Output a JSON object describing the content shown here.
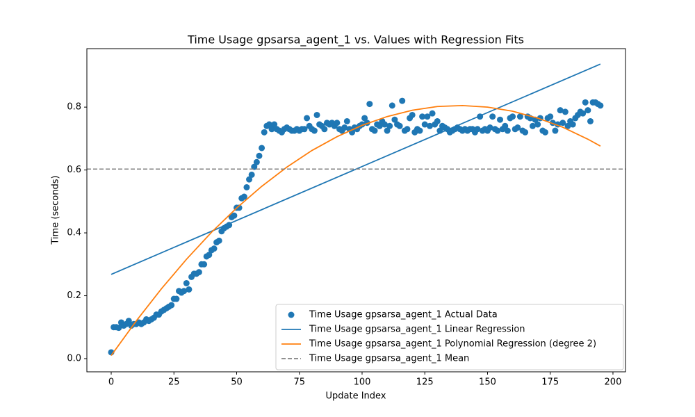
{
  "chart_data": {
    "type": "scatter",
    "title": "Time Usage gpsarsa_agent_1 vs. Values with Regression Fits",
    "xlabel": "Update Index",
    "ylabel": "Time (seconds)",
    "xlim": [
      -9.7,
      205
    ],
    "ylim": [
      -0.042,
      0.986
    ],
    "xticks": [
      0,
      25,
      50,
      75,
      100,
      125,
      150,
      175,
      200
    ],
    "yticks": [
      {
        "value": 0,
        "label": "0.0"
      },
      0.2,
      0.4,
      0.6,
      0.8
    ],
    "legend": "lower right",
    "series": [
      {
        "name": "Time Usage gpsarsa_agent_1 Actual Data",
        "kind": "scatter",
        "color": "#1f77b4",
        "x": [
          0,
          1,
          2,
          3,
          4,
          5,
          6,
          7,
          8,
          9,
          10,
          11,
          12,
          13,
          14,
          15,
          16,
          17,
          18,
          19,
          20,
          21,
          22,
          23,
          24,
          25,
          26,
          27,
          28,
          29,
          30,
          31,
          32,
          33,
          34,
          35,
          36,
          37,
          38,
          39,
          40,
          41,
          42,
          43,
          44,
          45,
          46,
          47,
          48,
          49,
          50,
          51,
          52,
          53,
          54,
          55,
          56,
          57,
          58,
          59,
          60,
          61,
          62,
          63,
          64,
          65,
          66,
          67,
          68,
          69,
          70,
          71,
          72,
          73,
          74,
          75,
          76,
          77,
          78,
          79,
          80,
          81,
          82,
          83,
          84,
          85,
          86,
          87,
          88,
          89,
          90,
          91,
          92,
          93,
          94,
          95,
          96,
          97,
          98,
          99,
          100,
          101,
          102,
          103,
          104,
          105,
          106,
          107,
          108,
          109,
          110,
          111,
          112,
          113,
          114,
          115,
          116,
          117,
          118,
          119,
          120,
          121,
          122,
          123,
          124,
          125,
          126,
          127,
          128,
          129,
          130,
          131,
          132,
          133,
          134,
          135,
          136,
          137,
          138,
          139,
          140,
          141,
          142,
          143,
          144,
          145,
          146,
          147,
          148,
          149,
          150,
          151,
          152,
          153,
          154,
          155,
          156,
          157,
          158,
          159,
          160,
          161,
          162,
          163,
          164,
          165,
          166,
          167,
          168,
          169,
          170,
          171,
          172,
          173,
          174,
          175,
          176,
          177,
          178,
          179,
          180,
          181,
          182,
          183,
          184,
          185,
          186,
          187,
          188,
          189,
          190,
          191,
          192,
          193,
          194,
          195
        ],
        "values": [
          0.02,
          0.1,
          0.1,
          0.098,
          0.115,
          0.105,
          0.11,
          0.12,
          0.105,
          0.11,
          0.11,
          0.115,
          0.11,
          0.115,
          0.125,
          0.12,
          0.125,
          0.13,
          0.14,
          0.14,
          0.15,
          0.155,
          0.16,
          0.165,
          0.17,
          0.19,
          0.19,
          0.215,
          0.21,
          0.215,
          0.24,
          0.22,
          0.26,
          0.27,
          0.27,
          0.275,
          0.3,
          0.3,
          0.325,
          0.33,
          0.345,
          0.35,
          0.37,
          0.375,
          0.405,
          0.415,
          0.42,
          0.425,
          0.45,
          0.455,
          0.48,
          0.48,
          0.51,
          0.515,
          0.545,
          0.57,
          0.585,
          0.61,
          0.625,
          0.645,
          0.67,
          0.72,
          0.74,
          0.745,
          0.73,
          0.745,
          0.73,
          0.725,
          0.72,
          0.73,
          0.735,
          0.73,
          0.725,
          0.725,
          0.73,
          0.725,
          0.73,
          0.73,
          0.765,
          0.74,
          0.73,
          0.725,
          0.775,
          0.745,
          0.74,
          0.73,
          0.75,
          0.745,
          0.75,
          0.74,
          0.75,
          0.73,
          0.725,
          0.735,
          0.755,
          0.73,
          0.72,
          0.735,
          0.73,
          0.74,
          0.745,
          0.765,
          0.75,
          0.81,
          0.73,
          0.725,
          0.745,
          0.74,
          0.755,
          0.745,
          0.725,
          0.74,
          0.805,
          0.76,
          0.745,
          0.74,
          0.82,
          0.725,
          0.73,
          0.765,
          0.775,
          0.72,
          0.73,
          0.725,
          0.77,
          0.745,
          0.77,
          0.74,
          0.78,
          0.745,
          0.755,
          0.725,
          0.74,
          0.735,
          0.73,
          0.72,
          0.725,
          0.73,
          0.735,
          0.73,
          0.725,
          0.73,
          0.725,
          0.73,
          0.73,
          0.72,
          0.73,
          0.77,
          0.725,
          0.73,
          0.725,
          0.735,
          0.77,
          0.73,
          0.725,
          0.76,
          0.73,
          0.74,
          0.725,
          0.765,
          0.77,
          0.73,
          0.735,
          0.77,
          0.725,
          0.72,
          0.77,
          0.765,
          0.74,
          0.76,
          0.745,
          0.765,
          0.725,
          0.72,
          0.765,
          0.77,
          0.75,
          0.725,
          0.745,
          0.79,
          0.75,
          0.785,
          0.74,
          0.755,
          0.745,
          0.765,
          0.775,
          0.785,
          0.78,
          0.815,
          0.79,
          0.755,
          0.815,
          0.815,
          0.81,
          0.805
        ]
      },
      {
        "name": "Time Usage gpsarsa_agent_1 Linear Regression",
        "kind": "line",
        "color": "#1f77b4",
        "x": [
          0,
          195
        ],
        "values": [
          0.268,
          0.937
        ]
      },
      {
        "name": "Time Usage gpsarsa_agent_1 Polynomial Regression (degree 2)",
        "kind": "line",
        "color": "#ff7f0e",
        "x": [
          0,
          10,
          20,
          30,
          40,
          50,
          60,
          70,
          80,
          90,
          100,
          110,
          120,
          130,
          140,
          150,
          160,
          170,
          180,
          190,
          195
        ],
        "values": [
          0.01,
          0.12,
          0.222,
          0.316,
          0.402,
          0.479,
          0.548,
          0.609,
          0.662,
          0.706,
          0.742,
          0.77,
          0.79,
          0.802,
          0.805,
          0.8,
          0.787,
          0.765,
          0.736,
          0.698,
          0.676
        ]
      },
      {
        "name": "Time Usage gpsarsa_agent_1 Mean",
        "kind": "hline",
        "color": "#808080",
        "linestyle": "dashed",
        "values": [
          0.603
        ]
      }
    ]
  }
}
